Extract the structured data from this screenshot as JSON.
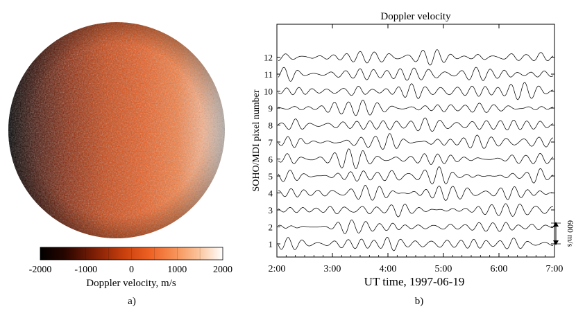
{
  "panel_a": {
    "label": "a)",
    "colorbar_label": "Doppler velocity, m/s",
    "colorbar_ticks": [
      "-2000",
      "-1000",
      "0",
      "1000",
      "2000"
    ],
    "colorbar_range": [
      -2000,
      2000
    ],
    "colors": [
      "#000000",
      "#3a0a02",
      "#8a2306",
      "#d2440f",
      "#ef6428",
      "#f79a64",
      "#fcd3b2",
      "#ffffff"
    ]
  },
  "panel_b": {
    "label": "b)",
    "title": "Doppler velocity",
    "xlabel": "UT time, 1997-06-19",
    "ylabel": "SOHO/MDI pixel number",
    "scale_label": "600 m/s",
    "chart_data": {
      "type": "line",
      "title": "Doppler velocity",
      "xlabel": "UT time, 1997-06-19",
      "ylabel": "SOHO/MDI pixel number",
      "xlim": [
        "2:00",
        "7:00"
      ],
      "x_ticks": [
        "2:00",
        "3:00",
        "4:00",
        "5:00",
        "6:00",
        "7:00"
      ],
      "y_ticks": [
        "1",
        "2",
        "3",
        "4",
        "5",
        "6",
        "7",
        "8",
        "9",
        "10",
        "11",
        "12"
      ],
      "series_count": 12,
      "scale_bar_mps": 600
    }
  }
}
